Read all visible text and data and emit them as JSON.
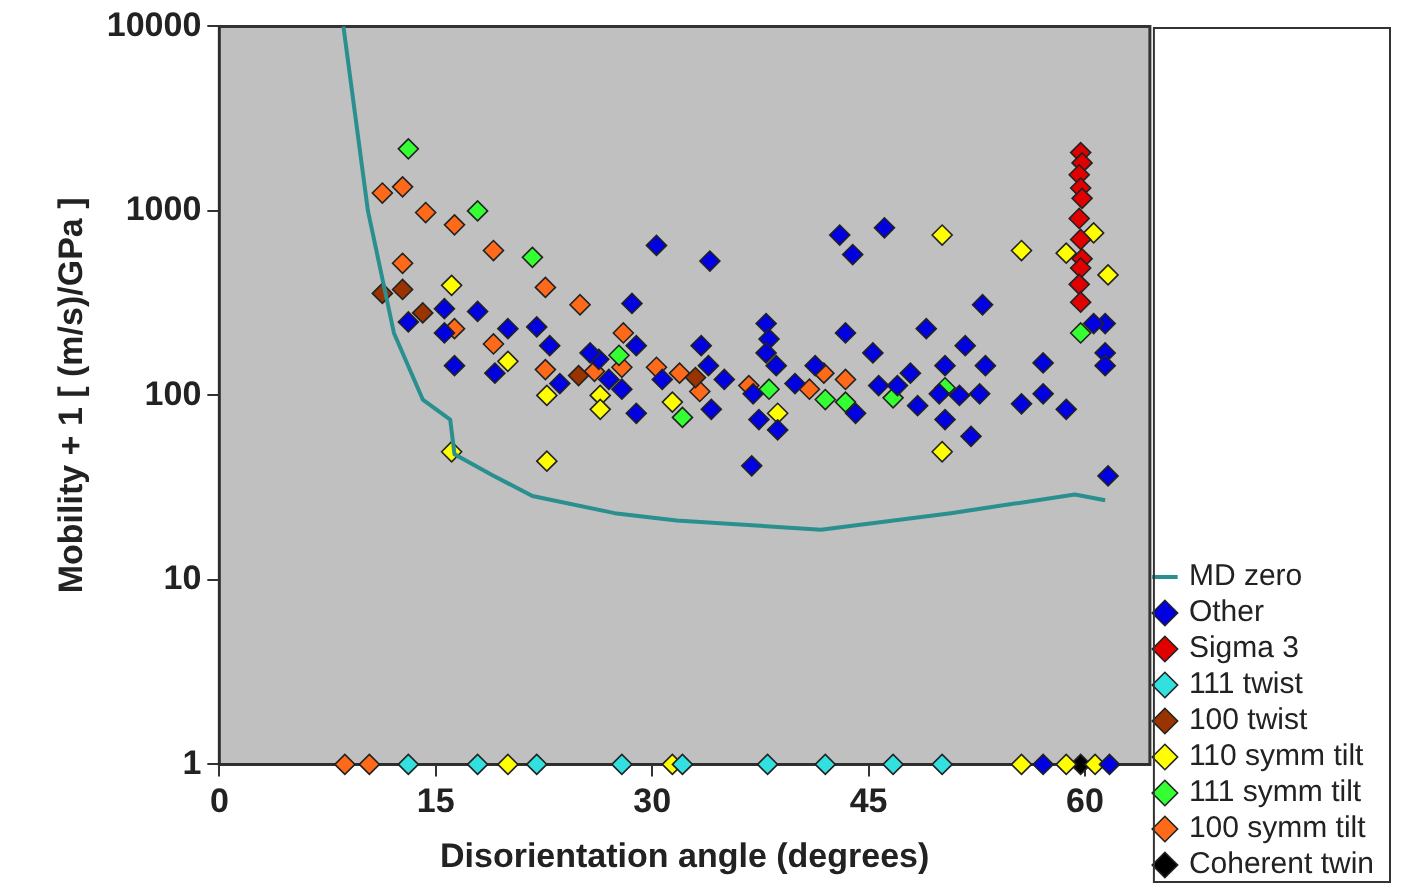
{
  "chart_data": {
    "type": "scatter",
    "xlabel": "Disorientation angle (degrees)",
    "ylabel": "Mobility + 1 [ (m/s)/GPa ]",
    "log": "y",
    "xlim": [
      0,
      64.5
    ],
    "ylim": [
      1,
      10000
    ],
    "xticks": [
      0,
      15,
      30,
      45,
      60
    ],
    "yticks": [
      1,
      10,
      100,
      1000,
      10000
    ],
    "grid": false,
    "legend": "bottom right",
    "marker": "diamond",
    "series": [
      {
        "name": "Other",
        "color": "#0000e0",
        "x": [
          13.1,
          15.6,
          17.9,
          16.3,
          19.1,
          20,
          22,
          22.9,
          23.6,
          26.3,
          27,
          15.6,
          30.3,
          34,
          28.6,
          28.9,
          28.9,
          30.7,
          33.4,
          33.9,
          35,
          34.1,
          36.9,
          37.9,
          38.1,
          37.9,
          38.6,
          37.4,
          38.7,
          39.9,
          43,
          43.9,
          46.1,
          43.4,
          45.3,
          44.1,
          45.7,
          47.9,
          49,
          48.4,
          50.3,
          50.3,
          51.7,
          52.9,
          52.1,
          52.7,
          53.1,
          55.6,
          57.1,
          57.1,
          58.7,
          61.4,
          61.4,
          61.4,
          61.6,
          60.6,
          37,
          41.3,
          47,
          49.9,
          51.3,
          25.7,
          27.9,
          57.1,
          61.7
        ],
        "values": [
          250,
          295,
          285,
          145,
          132,
          230,
          235,
          186,
          116,
          157,
          122,
          218,
          650,
          535,
          315,
          186,
          80,
          122,
          186,
          145,
          122,
          84,
          41.5,
          245,
          202,
          170,
          145,
          74,
          65,
          116,
          740,
          580,
          810,
          218,
          170,
          80,
          113,
          132,
          230,
          88,
          145,
          74,
          186,
          310,
          60,
          102,
          145,
          90,
          150,
          102,
          84,
          245,
          170,
          145,
          36.6,
          245,
          102,
          145,
          113,
          102,
          100,
          170,
          108,
          1,
          1
        ]
      },
      {
        "name": "Sigma 3",
        "color": "#e00000",
        "x": [
          59.7,
          59.8,
          59.6,
          59.7,
          59.8,
          59.6,
          59.7,
          59.8,
          59.7,
          59.6,
          59.7
        ],
        "values": [
          2070,
          1820,
          1570,
          1330,
          1170,
          910,
          700,
          550,
          490,
          400,
          320
        ]
      },
      {
        "name": "111 twist",
        "color": "#33e0e0",
        "x": [
          13.1,
          17.9,
          22,
          27.9,
          32.1,
          38,
          42,
          46.7,
          50.1
        ],
        "values": [
          1,
          1,
          1,
          1,
          1,
          1,
          1,
          1,
          1
        ]
      },
      {
        "name": "100 twist",
        "color": "#993300",
        "x": [
          11.3,
          12.7,
          14.1,
          24.9,
          33
        ],
        "values": [
          357,
          375,
          280,
          128,
          125
        ]
      },
      {
        "name": "110 symm tilt",
        "color": "#ffff00",
        "x": [
          16.1,
          20,
          22.7,
          26.4,
          26.4,
          16.1,
          22.7,
          31.4,
          38.7,
          50.1,
          50.1,
          55.6,
          58.7,
          60.6,
          61.6,
          20,
          31.4,
          55.6,
          58.7,
          60.7
        ],
        "values": [
          395,
          153,
          100,
          100,
          84,
          49.5,
          44,
          92,
          80,
          740,
          49.5,
          610,
          590,
          760,
          450,
          1,
          1,
          1,
          1,
          1
        ]
      },
      {
        "name": "111 symm tilt",
        "color": "#33ff33",
        "x": [
          13.1,
          17.9,
          21.7,
          27.7,
          32.1,
          38.1,
          42,
          43.4,
          46.7,
          50.3,
          59.7
        ],
        "values": [
          2170,
          1000,
          560,
          165,
          76,
          108,
          95,
          92,
          97,
          110,
          218
        ]
      },
      {
        "name": "100 symm tilt",
        "color": "#ff6a1a",
        "x": [
          11.3,
          12.7,
          14.3,
          16.3,
          19,
          22.6,
          25,
          12.7,
          16.3,
          19,
          22.6,
          26,
          28,
          27.9,
          30.3,
          31.9,
          33.3,
          36.7,
          40.9,
          41.9,
          43.4,
          8.7,
          10.4
        ],
        "values": [
          1250,
          1350,
          980,
          840,
          610,
          385,
          310,
          520,
          230,
          190,
          138,
          135,
          218,
          142,
          142,
          132,
          105,
          113,
          108,
          132,
          122,
          1,
          1
        ]
      },
      {
        "name": "Coherent twin",
        "color": "#000000",
        "x": [
          59.7
        ],
        "values": [
          1
        ]
      },
      {
        "name": "MD zero",
        "type": "line",
        "marker": "none",
        "color": "#2a8f8f",
        "x": [
          8.6,
          10.3,
          12.1,
          14.1,
          16,
          16.3,
          18.9,
          21.7,
          27.4,
          31.7,
          41.7,
          50.7,
          59.3,
          61.4
        ],
        "values": [
          10000,
          1000,
          218,
          95,
          74,
          48,
          37,
          28.5,
          23,
          21,
          18.7,
          23,
          29,
          27
        ]
      }
    ]
  }
}
